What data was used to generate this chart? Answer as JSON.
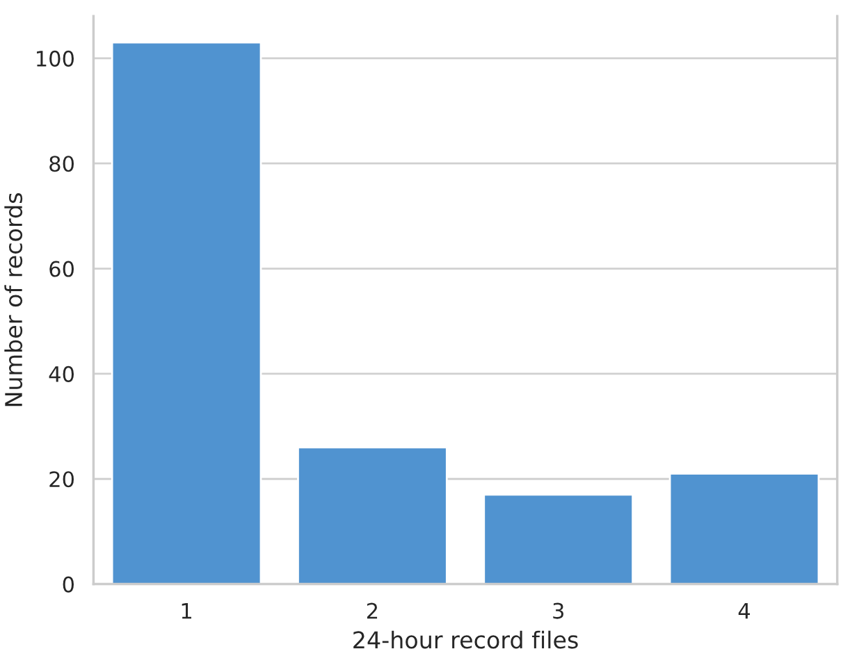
{
  "chart_data": {
    "type": "bar",
    "xlabel": "24-hour record files",
    "ylabel": "Number of records",
    "categories": [
      "1",
      "2",
      "3",
      "4"
    ],
    "values": [
      103,
      26,
      17,
      21
    ],
    "color": "#5093d0",
    "ylim": [
      0,
      108
    ],
    "yticks": [
      0,
      20,
      40,
      60,
      80,
      100
    ],
    "grid": "y"
  }
}
